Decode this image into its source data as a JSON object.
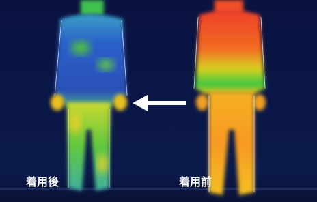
{
  "labels": {
    "after": "着用後",
    "before": "着用前"
  }
}
